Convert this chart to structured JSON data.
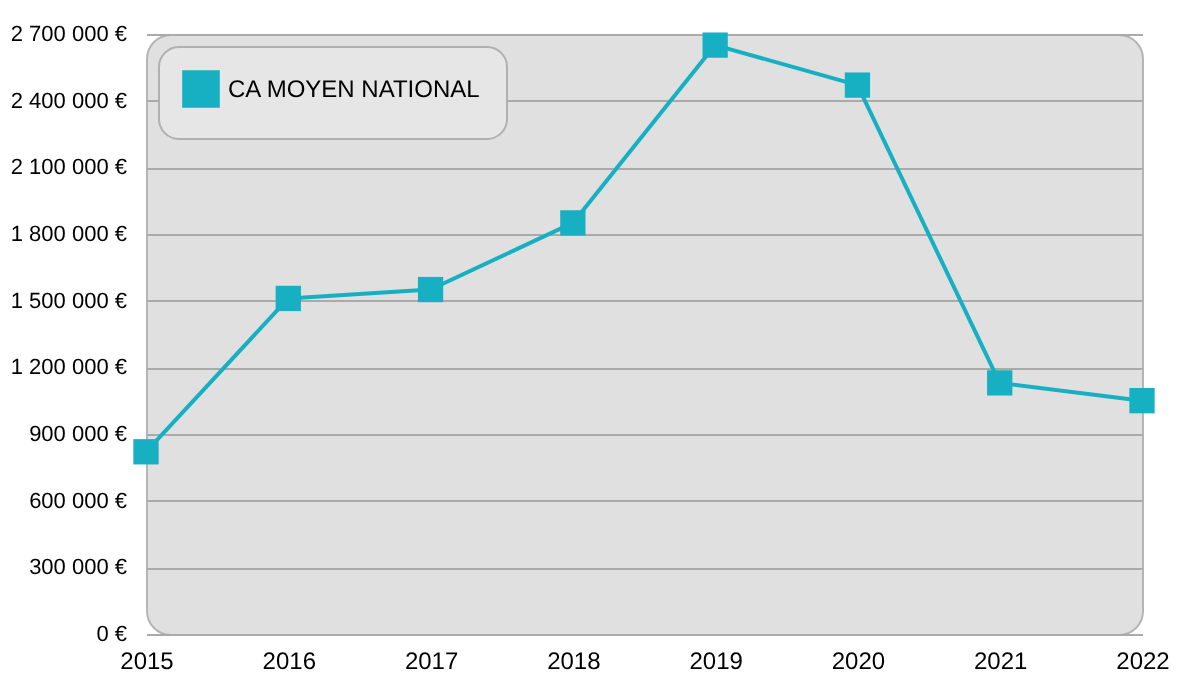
{
  "chart_data": {
    "type": "line",
    "categories": [
      "2015",
      "2016",
      "2017",
      "2018",
      "2019",
      "2020",
      "2021",
      "2022"
    ],
    "series": [
      {
        "name": "CA MOYEN NATIONAL",
        "color": "#16b0c2",
        "values": [
          820000,
          1510000,
          1550000,
          1850000,
          2650000,
          2470000,
          1130000,
          1050000
        ]
      }
    ],
    "ylim": [
      0,
      2700000
    ],
    "yticks": [
      {
        "value": 0,
        "label": "0 €"
      },
      {
        "value": 300000,
        "label": "300 000 €"
      },
      {
        "value": 600000,
        "label": "600 000 €"
      },
      {
        "value": 900000,
        "label": "900 000 €"
      },
      {
        "value": 1200000,
        "label": "1 200 000 €"
      },
      {
        "value": 1500000,
        "label": "1 500 000 €"
      },
      {
        "value": 1800000,
        "label": "1 800 000 €"
      },
      {
        "value": 2100000,
        "label": "2 100 000 €"
      },
      {
        "value": 2400000,
        "label": "2 400 000 €"
      },
      {
        "value": 2700000,
        "label": "2 700 000 €"
      }
    ],
    "grid": "y",
    "legend": "top left",
    "marker": "square",
    "line_style": "solid"
  }
}
